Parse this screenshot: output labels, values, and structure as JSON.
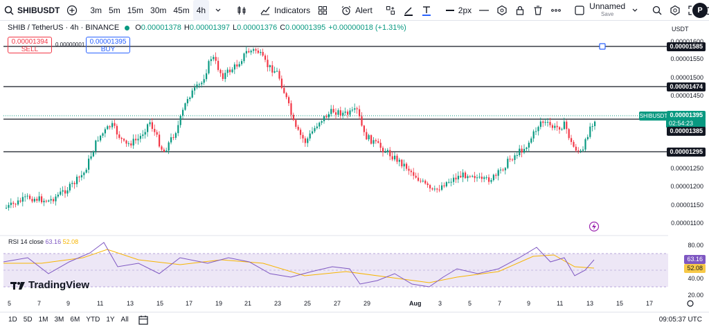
{
  "toolbar": {
    "symbol": "SHIBUSDT",
    "timeframes": [
      "3m",
      "5m",
      "15m",
      "30m",
      "45m",
      "4h"
    ],
    "active_timeframe": "4h",
    "indicators_label": "Indicators",
    "alert_label": "Alert",
    "line_width_label": "2px",
    "layout_name": "Unnamed",
    "layout_status": "Save",
    "avatar_letter": "P"
  },
  "legend": {
    "title": "SHIB / TetherUS · 4h · BINANCE",
    "open_label": "O",
    "open": "0.00001378",
    "high_label": "H",
    "high": "0.00001397",
    "low_label": "L",
    "low": "0.00001376",
    "close_label": "C",
    "close": "0.00001395",
    "change": "+0.00000018 (+1.31%)"
  },
  "trade": {
    "sell_price": "0.00001394",
    "sell_label": "SELL",
    "buy_price": "0.00001395",
    "buy_label": "BUY",
    "spread": "0.00000001"
  },
  "price_axis": {
    "currency": "USDT",
    "ticks": [
      "0.00001600",
      "0.00001550",
      "0.00001500",
      "0.00001450",
      "0.00001250",
      "0.00001200",
      "0.00001150",
      "0.00001100"
    ],
    "levels": [
      "0.00001585",
      "0.00001474",
      "0.00001385",
      "0.00001295"
    ],
    "current_price": "0.00001395",
    "symbol_tag": "SHIBUSDT",
    "countdown": "02:54:23"
  },
  "rsi": {
    "label": "RSI 14 close",
    "value": "63.16",
    "ma_value": "52.08",
    "ticks": [
      "80.00",
      "40.00",
      "20.00"
    ],
    "rsi_color": "#7e57c2",
    "ma_color": "#f7b500"
  },
  "branding": {
    "logo_text": "TradingView"
  },
  "time_axis": {
    "labels": [
      "5",
      "7",
      "9",
      "11",
      "13",
      "15",
      "17",
      "19",
      "21",
      "23",
      "25",
      "27",
      "29",
      "Aug",
      "3",
      "5",
      "7",
      "9",
      "11",
      "13",
      "15",
      "17"
    ]
  },
  "bottom": {
    "ranges": [
      "1D",
      "5D",
      "1M",
      "3M",
      "6M",
      "YTD",
      "1Y",
      "All"
    ],
    "clock": "09:05:37 UTC"
  },
  "colors": {
    "up": "#089981",
    "down": "#f23645",
    "accent": "#2962ff"
  }
}
